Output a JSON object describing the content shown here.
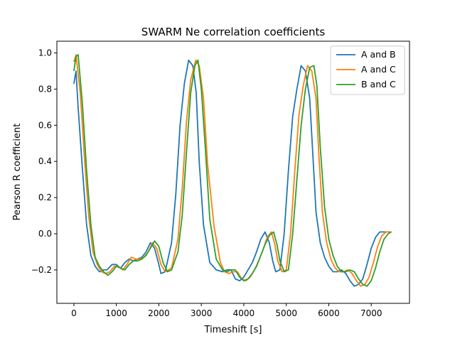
{
  "chart_data": {
    "type": "line",
    "title": "SWARM Ne correlation coefficients",
    "xlabel": "Timeshift [s]",
    "ylabel": "Pearson R coefficient",
    "xlim": [
      -400,
      7900
    ],
    "ylim": [
      -0.385,
      1.065
    ],
    "xticks": [
      0,
      1000,
      2000,
      3000,
      4000,
      5000,
      6000,
      7000
    ],
    "yticks": [
      -0.2,
      0.0,
      0.2,
      0.4,
      0.6,
      0.8,
      1.0
    ],
    "xtick_labels": [
      "0",
      "1000",
      "2000",
      "3000",
      "4000",
      "5000",
      "6000",
      "7000"
    ],
    "ytick_labels": [
      "−0.2",
      "0.0",
      "0.2",
      "0.4",
      "0.6",
      "0.8",
      "1.0"
    ],
    "grid": false,
    "legend_position": "top-right",
    "series": [
      {
        "name": "A and B",
        "color": "#1f77b4",
        "x": [
          0,
          50,
          100,
          200,
          300,
          400,
          500,
          600,
          700,
          780,
          900,
          1000,
          1100,
          1200,
          1300,
          1400,
          1500,
          1600,
          1700,
          1800,
          1900,
          2000,
          2050,
          2150,
          2300,
          2400,
          2500,
          2600,
          2700,
          2800,
          2880,
          2950,
          3050,
          3200,
          3350,
          3500,
          3600,
          3700,
          3800,
          3900,
          4000,
          4100,
          4200,
          4300,
          4400,
          4500,
          4600,
          4680,
          4750,
          4850,
          4950,
          5050,
          5150,
          5250,
          5350,
          5450,
          5550,
          5630,
          5700,
          5800,
          5900,
          6000,
          6100,
          6200,
          6300,
          6400,
          6500,
          6600,
          6700,
          6800,
          6900,
          7000,
          7100,
          7200,
          7300,
          7400,
          7450
        ],
        "y": [
          0.83,
          0.9,
          0.7,
          0.36,
          0.05,
          -0.12,
          -0.18,
          -0.21,
          -0.2,
          -0.2,
          -0.17,
          -0.17,
          -0.19,
          -0.16,
          -0.14,
          -0.15,
          -0.14,
          -0.13,
          -0.1,
          -0.05,
          -0.08,
          -0.17,
          -0.22,
          -0.21,
          -0.05,
          0.22,
          0.6,
          0.83,
          0.96,
          0.93,
          0.78,
          0.4,
          0.05,
          -0.16,
          -0.2,
          -0.21,
          -0.2,
          -0.2,
          -0.25,
          -0.26,
          -0.24,
          -0.2,
          -0.16,
          -0.1,
          -0.03,
          0.01,
          -0.05,
          -0.15,
          -0.21,
          -0.2,
          0.0,
          0.35,
          0.65,
          0.8,
          0.93,
          0.9,
          0.75,
          0.42,
          0.12,
          -0.05,
          -0.13,
          -0.18,
          -0.21,
          -0.21,
          -0.2,
          -0.22,
          -0.26,
          -0.29,
          -0.28,
          -0.25,
          -0.17,
          -0.08,
          -0.02,
          0.01,
          0.01,
          0.01,
          0.01
        ]
      },
      {
        "name": "A and C",
        "color": "#ff7f0e",
        "x": [
          0,
          50,
          150,
          250,
          350,
          450,
          550,
          650,
          750,
          850,
          950,
          1050,
          1150,
          1250,
          1350,
          1450,
          1550,
          1650,
          1750,
          1850,
          1950,
          2050,
          2150,
          2300,
          2450,
          2550,
          2650,
          2750,
          2870,
          2950,
          3050,
          3150,
          3300,
          3450,
          3550,
          3650,
          3750,
          3850,
          3950,
          4050,
          4150,
          4250,
          4350,
          4450,
          4550,
          4650,
          4730,
          4800,
          4900,
          5000,
          5100,
          5200,
          5300,
          5400,
          5500,
          5600,
          5700,
          5770,
          5850,
          5950,
          6050,
          6150,
          6250,
          6350,
          6450,
          6550,
          6650,
          6750,
          6850,
          6950,
          7050,
          7150,
          7250,
          7350,
          7450,
          7480
        ],
        "y": [
          0.95,
          0.99,
          0.78,
          0.42,
          0.1,
          -0.1,
          -0.17,
          -0.21,
          -0.22,
          -0.21,
          -0.18,
          -0.18,
          -0.2,
          -0.17,
          -0.13,
          -0.14,
          -0.14,
          -0.13,
          -0.1,
          -0.05,
          -0.08,
          -0.17,
          -0.21,
          -0.19,
          -0.03,
          0.25,
          0.62,
          0.85,
          0.96,
          0.93,
          0.75,
          0.38,
          0.04,
          -0.16,
          -0.21,
          -0.22,
          -0.21,
          -0.21,
          -0.25,
          -0.26,
          -0.24,
          -0.2,
          -0.15,
          -0.09,
          -0.02,
          0.01,
          -0.06,
          -0.15,
          -0.21,
          -0.2,
          0.0,
          0.35,
          0.66,
          0.82,
          0.93,
          0.9,
          0.75,
          0.42,
          0.12,
          -0.05,
          -0.14,
          -0.19,
          -0.21,
          -0.21,
          -0.2,
          -0.22,
          -0.26,
          -0.29,
          -0.28,
          -0.24,
          -0.16,
          -0.07,
          -0.01,
          0.01,
          0.01,
          0.01
        ]
      },
      {
        "name": "B and C",
        "color": "#2ca02c",
        "x": [
          0,
          50,
          100,
          200,
          300,
          400,
          500,
          600,
          700,
          800,
          900,
          1000,
          1100,
          1200,
          1300,
          1400,
          1500,
          1600,
          1700,
          1800,
          1900,
          2000,
          2100,
          2200,
          2300,
          2450,
          2550,
          2650,
          2750,
          2850,
          2920,
          3000,
          3100,
          3200,
          3350,
          3500,
          3600,
          3700,
          3800,
          3900,
          4000,
          4100,
          4200,
          4300,
          4400,
          4500,
          4600,
          4700,
          4780,
          4850,
          4950,
          5050,
          5150,
          5250,
          5350,
          5450,
          5550,
          5650,
          5720,
          5800,
          5900,
          6000,
          6100,
          6200,
          6300,
          6400,
          6500,
          6600,
          6700,
          6800,
          6900,
          7000,
          7100,
          7200,
          7300,
          7400,
          7470
        ],
        "y": [
          0.9,
          0.98,
          0.99,
          0.72,
          0.35,
          0.05,
          -0.13,
          -0.18,
          -0.21,
          -0.23,
          -0.21,
          -0.18,
          -0.19,
          -0.2,
          -0.17,
          -0.15,
          -0.15,
          -0.14,
          -0.12,
          -0.08,
          -0.04,
          -0.07,
          -0.16,
          -0.21,
          -0.2,
          -0.1,
          0.1,
          0.45,
          0.78,
          0.93,
          0.96,
          0.8,
          0.45,
          0.08,
          -0.14,
          -0.2,
          -0.21,
          -0.2,
          -0.2,
          -0.24,
          -0.26,
          -0.25,
          -0.22,
          -0.18,
          -0.12,
          -0.06,
          -0.01,
          0.01,
          -0.06,
          -0.15,
          -0.21,
          -0.2,
          0.0,
          0.3,
          0.6,
          0.8,
          0.92,
          0.93,
          0.82,
          0.48,
          0.15,
          -0.03,
          -0.12,
          -0.18,
          -0.21,
          -0.21,
          -0.2,
          -0.21,
          -0.25,
          -0.28,
          -0.29,
          -0.26,
          -0.19,
          -0.1,
          -0.03,
          0.0,
          0.01
        ]
      }
    ]
  }
}
